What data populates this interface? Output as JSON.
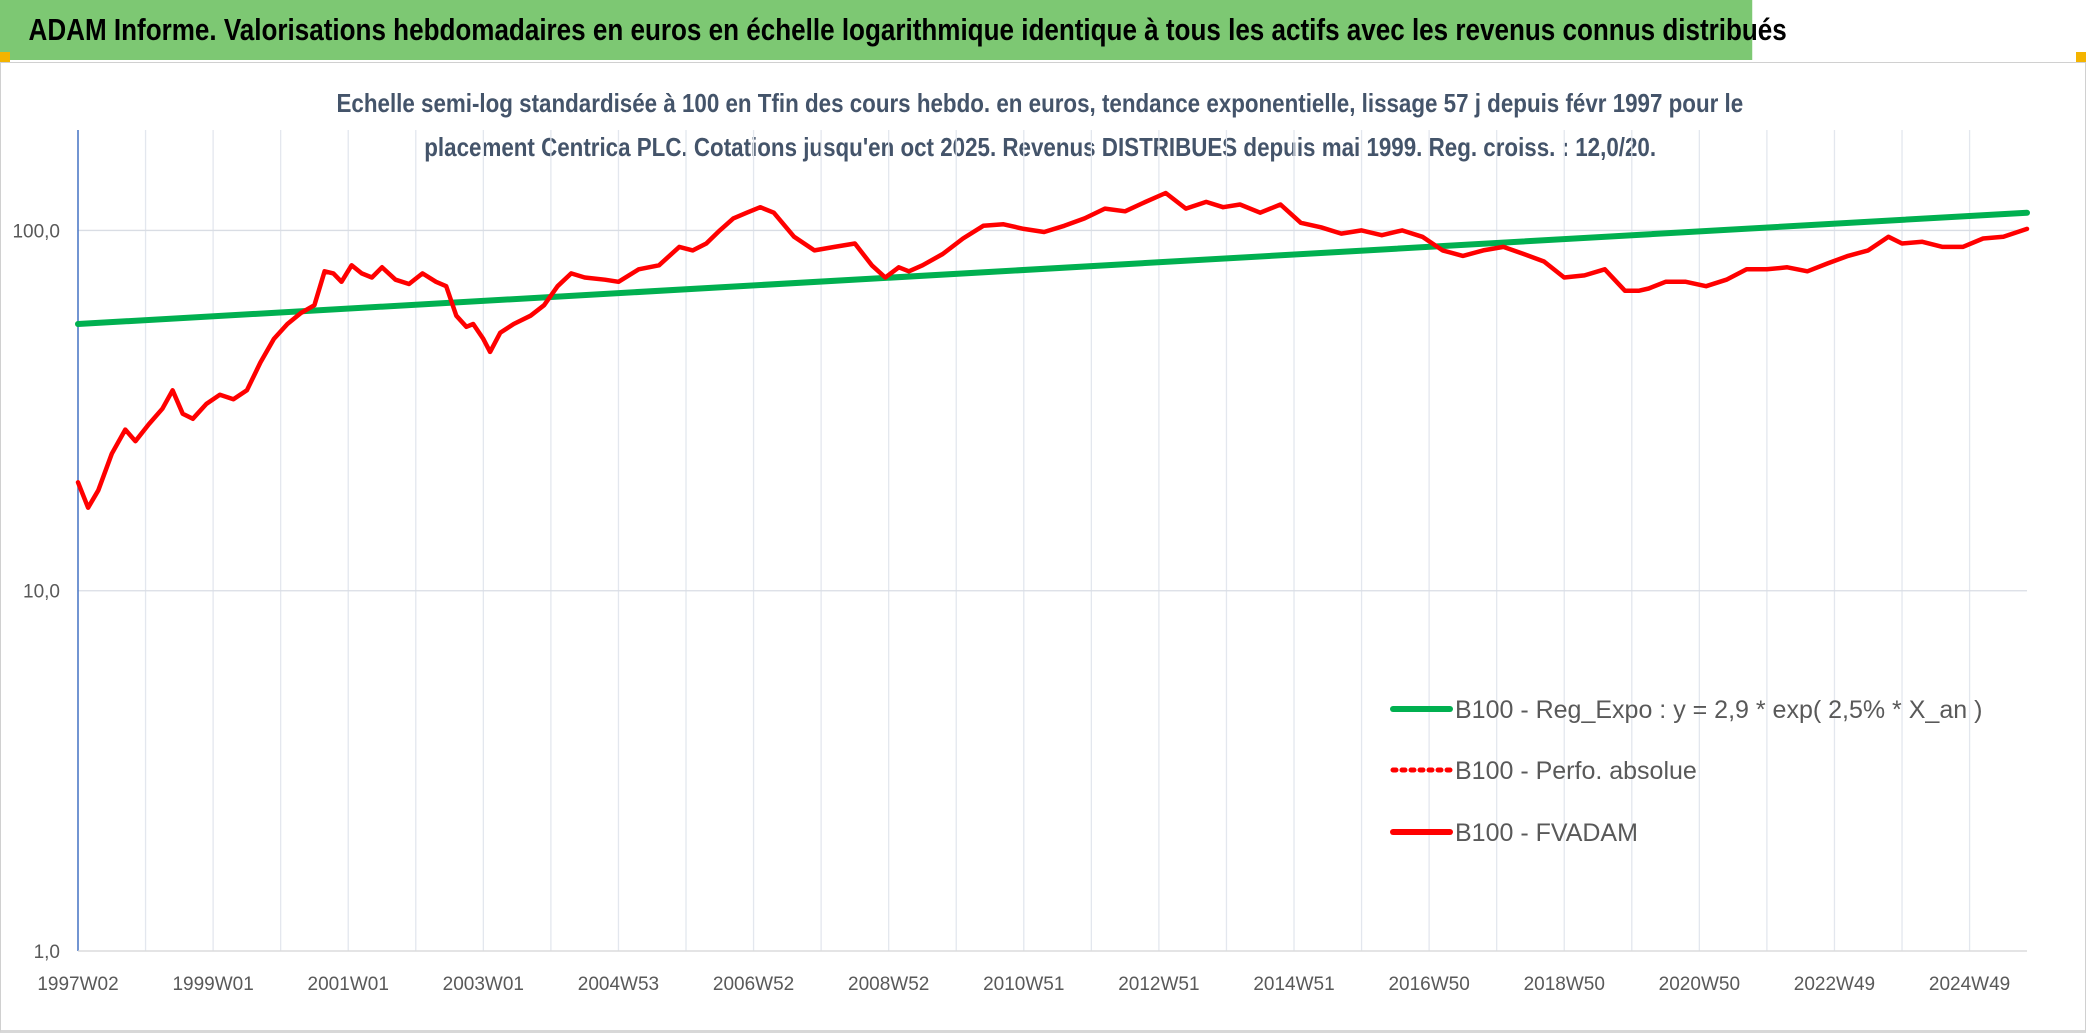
{
  "banner": {
    "title": "ADAM Informe. Valorisations hebdomadaires en euros en échelle logarithmique identique à tous les actifs avec les revenus connus distribués"
  },
  "colors": {
    "banner_bg": "#7dc873",
    "corner_accent": "#f4b400",
    "regression": "#00b050",
    "perf_absolue": "#ff0000",
    "fvadam": "#ff0000",
    "axis_text": "#595959",
    "title_text": "#44546a"
  },
  "chart_data": {
    "type": "line",
    "title_line1": "Echelle semi-log standardisée à 100 en Tfin des cours hebdo. en euros, tendance exponentielle, lissage 57 j depuis févr 1997 pour le",
    "title_line2": "placement Centrica PLC. Cotations jusqu'en oct 2025. Revenus DISTRIBUES depuis mai 1999. Reg. croiss. : 12,0/20.",
    "y_scale": "log",
    "ylim": [
      1,
      190
    ],
    "xlim": [
      1997.0,
      2025.85
    ],
    "y_ticks": [
      {
        "value": 1,
        "label": "1,0"
      },
      {
        "value": 10,
        "label": "10,0"
      },
      {
        "value": 100,
        "label": "100,0"
      }
    ],
    "x_tick_labels": [
      {
        "pos": 1997.0,
        "label": "1997W02"
      },
      {
        "pos": 1999.0,
        "label": "1999W01"
      },
      {
        "pos": 2001.0,
        "label": "2001W01"
      },
      {
        "pos": 2003.0,
        "label": "2003W01"
      },
      {
        "pos": 2005.0,
        "label": "2004W53"
      },
      {
        "pos": 2007.0,
        "label": "2006W52"
      },
      {
        "pos": 2009.0,
        "label": "2008W52"
      },
      {
        "pos": 2011.0,
        "label": "2010W51"
      },
      {
        "pos": 2013.0,
        "label": "2012W51"
      },
      {
        "pos": 2015.0,
        "label": "2014W51"
      },
      {
        "pos": 2017.0,
        "label": "2016W50"
      },
      {
        "pos": 2019.0,
        "label": "2018W50"
      },
      {
        "pos": 2021.0,
        "label": "2020W50"
      },
      {
        "pos": 2023.0,
        "label": "2022W49"
      },
      {
        "pos": 2025.0,
        "label": "2024W49"
      }
    ],
    "x_gridlines": [
      1998,
      1999,
      2000,
      2001,
      2002,
      2003,
      2004,
      2005,
      2006,
      2007,
      2008,
      2009,
      2010,
      2011,
      2012,
      2013,
      2014,
      2015,
      2016,
      2017,
      2018,
      2019,
      2020,
      2021,
      2022,
      2023,
      2024,
      2025
    ],
    "legend_position": "bottom-right",
    "series": [
      {
        "name": "B100 - Reg_Expo : y = 2,9 * exp( 2,5% *  X_an )",
        "style": "solid-green",
        "x": [
          1997.0,
          2025.85
        ],
        "values": [
          55,
          112
        ]
      },
      {
        "name": "B100 - Perfo. absolue",
        "style": "dotted-red",
        "x": [],
        "values": []
      },
      {
        "name": "B100 - FVADAM",
        "style": "solid-red",
        "x": [
          1997.0,
          1997.15,
          1997.3,
          1997.5,
          1997.7,
          1997.85,
          1998.05,
          1998.25,
          1998.4,
          1998.55,
          1998.7,
          1998.9,
          1999.1,
          1999.3,
          1999.5,
          1999.7,
          1999.9,
          2000.1,
          2000.3,
          2000.5,
          2000.65,
          2000.78,
          2000.9,
          2001.05,
          2001.2,
          2001.35,
          2001.5,
          2001.7,
          2001.9,
          2002.1,
          2002.3,
          2002.45,
          2002.6,
          2002.75,
          2002.85,
          2003.0,
          2003.1,
          2003.25,
          2003.45,
          2003.7,
          2003.9,
          2004.1,
          2004.3,
          2004.5,
          2004.8,
          2005.0,
          2005.3,
          2005.6,
          2005.9,
          2006.1,
          2006.3,
          2006.5,
          2006.7,
          2006.9,
          2007.1,
          2007.3,
          2007.6,
          2007.9,
          2008.2,
          2008.5,
          2008.75,
          2008.95,
          2009.15,
          2009.3,
          2009.5,
          2009.8,
          2010.1,
          2010.4,
          2010.7,
          2011.0,
          2011.3,
          2011.6,
          2011.9,
          2012.2,
          2012.5,
          2012.8,
          2013.1,
          2013.4,
          2013.7,
          2013.95,
          2014.2,
          2014.5,
          2014.8,
          2015.1,
          2015.4,
          2015.7,
          2016.0,
          2016.3,
          2016.6,
          2016.9,
          2017.2,
          2017.5,
          2017.8,
          2018.1,
          2018.4,
          2018.7,
          2019.0,
          2019.3,
          2019.6,
          2019.9,
          2020.1,
          2020.25,
          2020.5,
          2020.8,
          2021.1,
          2021.4,
          2021.7,
          2022.0,
          2022.3,
          2022.6,
          2022.9,
          2023.2,
          2023.5,
          2023.8,
          2024.0,
          2024.3,
          2024.6,
          2024.9,
          2025.2,
          2025.5,
          2025.85
        ],
        "values": [
          20,
          17,
          19,
          24,
          28,
          26,
          29,
          32,
          36,
          31,
          30,
          33,
          35,
          34,
          36,
          43,
          50,
          55,
          59,
          62,
          77,
          76,
          72,
          80,
          76,
          74,
          79,
          73,
          71,
          76,
          72,
          70,
          58,
          54,
          55,
          50,
          46,
          52,
          55,
          58,
          62,
          70,
          76,
          74,
          73,
          72,
          78,
          80,
          90,
          88,
          92,
          100,
          108,
          112,
          116,
          112,
          96,
          88,
          90,
          92,
          80,
          74,
          79,
          77,
          80,
          86,
          95,
          103,
          104,
          101,
          99,
          103,
          108,
          115,
          113,
          120,
          127,
          115,
          120,
          116,
          118,
          112,
          118,
          105,
          102,
          98,
          100,
          97,
          100,
          96,
          88,
          85,
          88,
          90,
          86,
          82,
          74,
          75,
          78,
          68,
          68,
          69,
          72,
          72,
          70,
          73,
          78,
          78,
          79,
          77,
          81,
          85,
          88,
          96,
          92,
          93,
          90,
          90,
          95,
          96,
          101
        ]
      }
    ]
  }
}
